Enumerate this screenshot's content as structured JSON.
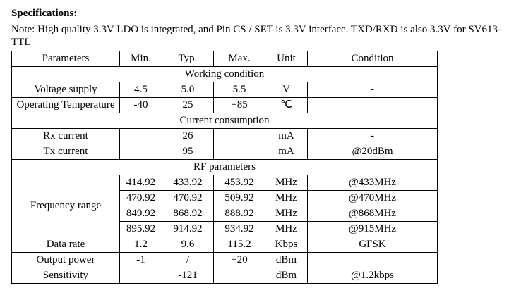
{
  "heading": "Specifications:",
  "note": "Note: High quality 3.3V LDO is integrated, and Pin CS / SET is 3.3V interface. TXD/RXD is also 3.3V for SV613-TTL",
  "header": [
    "Parameters",
    "Min.",
    "Typ.",
    "Max.",
    "Unit",
    "Condition"
  ],
  "sections": {
    "working": "Working condition",
    "current": "Current consumption",
    "rf": "RF parameters"
  },
  "rows": {
    "voltage": {
      "param": "Voltage supply",
      "min": "4.5",
      "typ": "5.0",
      "max": "5.5",
      "unit": "V",
      "cond": "-"
    },
    "temp": {
      "param": "Operating Temperature",
      "min": "-40",
      "typ": "25",
      "max": "+85",
      "unit": "℃",
      "cond": ""
    },
    "rx": {
      "param": "Rx current",
      "min": "",
      "typ": "26",
      "max": "",
      "unit": "mA",
      "cond": "-"
    },
    "tx": {
      "param": "Tx current",
      "min": "",
      "typ": "95",
      "max": "",
      "unit": "mA",
      "cond": "@20dBm"
    },
    "freq": {
      "param": "Frequency range",
      "bands": [
        {
          "min": "414.92",
          "typ": "433.92",
          "max": "453.92",
          "unit": "MHz",
          "cond": "@433MHz"
        },
        {
          "min": "470.92",
          "typ": "470.92",
          "max": "509.92",
          "unit": "MHz",
          "cond": "@470MHz"
        },
        {
          "min": "849.92",
          "typ": "868.92",
          "max": "888.92",
          "unit": "MHz",
          "cond": "@868MHz"
        },
        {
          "min": "895.92",
          "typ": "914.92",
          "max": "934.92",
          "unit": "MHz",
          "cond": "@915MHz"
        }
      ]
    },
    "datarate": {
      "param": "Data rate",
      "min": "1.2",
      "typ": "9.6",
      "max": "115.2",
      "unit": "Kbps",
      "cond": "GFSK"
    },
    "power": {
      "param": "Output power",
      "min": "-1",
      "typ": "/",
      "max": "+20",
      "unit": "dBm",
      "cond": ""
    },
    "sens": {
      "param": "Sensitivity",
      "min": "",
      "typ": "-121",
      "max": "",
      "unit": "dBm",
      "cond": "@1.2kbps"
    }
  }
}
